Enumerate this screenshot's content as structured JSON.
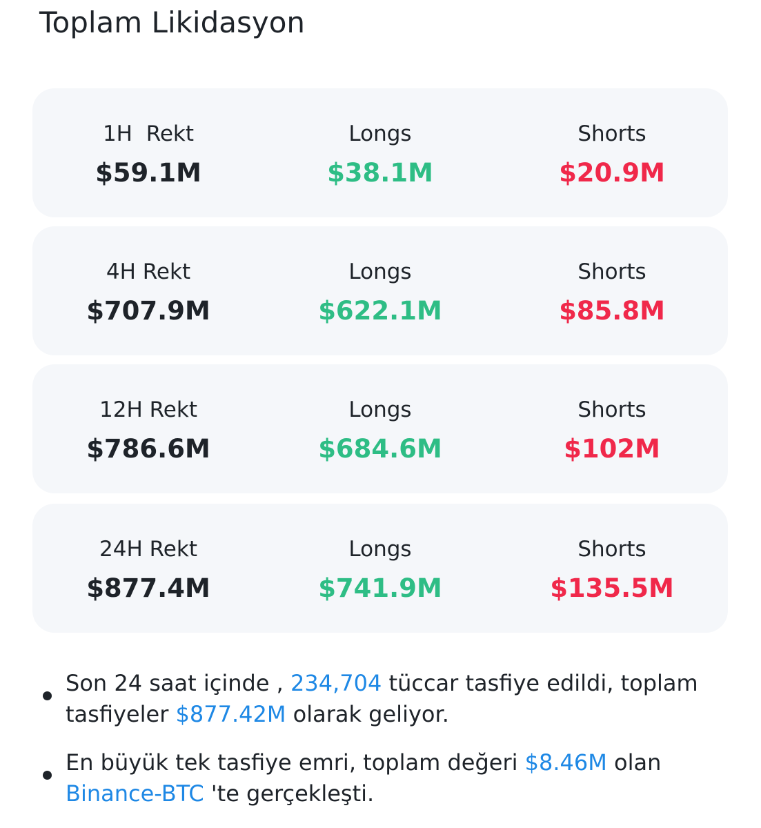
{
  "header": {
    "title": "Toplam Likidasyon"
  },
  "cards": [
    {
      "period": "1H  Rekt",
      "total": "$59.1M",
      "longs_label": "Longs",
      "longs": "$38.1M",
      "shorts_label": "Shorts",
      "shorts": "$20.9M"
    },
    {
      "period": "4H Rekt",
      "total": "$707.9M",
      "longs_label": "Longs",
      "longs": "$622.1M",
      "shorts_label": "Shorts",
      "shorts": "$85.8M"
    },
    {
      "period": "12H Rekt",
      "total": "$786.6M",
      "longs_label": "Longs",
      "longs": "$684.6M",
      "shorts_label": "Shorts",
      "shorts": "$102M"
    },
    {
      "period": "24H Rekt",
      "total": "$877.4M",
      "longs_label": "Longs",
      "longs": "$741.9M",
      "shorts_label": "Shorts",
      "shorts": "$135.5M"
    }
  ],
  "notes": [
    {
      "lines": [
        [
          "Son 24 saat içinde , ",
          "234,704",
          " tüccar tasfiye edildi, toplam"
        ],
        [
          "tasfiyeler ",
          "$877.42M",
          " olarak geliyor."
        ]
      ]
    },
    {
      "lines": [
        [
          "En büyük tek tasfiye emri, toplam değeri ",
          "$8.46M",
          " olan"
        ],
        [
          "Binance-BTC",
          " 'te gerçekleşti."
        ]
      ]
    }
  ]
}
